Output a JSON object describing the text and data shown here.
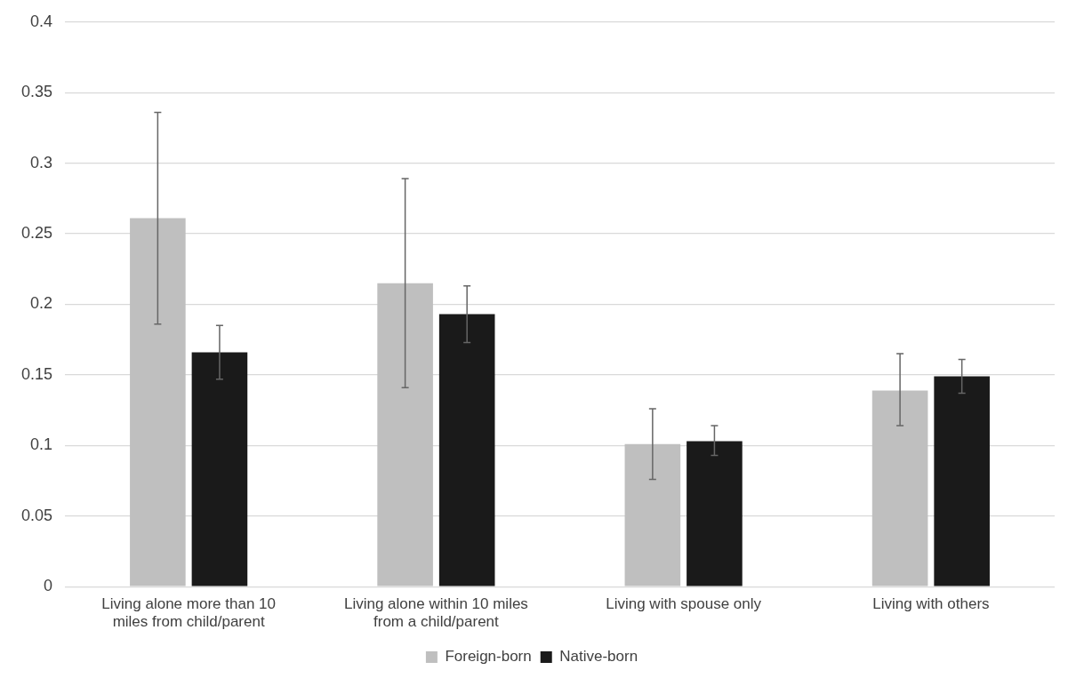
{
  "chart_data": {
    "type": "bar",
    "categories": [
      "Living alone more than 10 miles from child/parent",
      "Living alone within 10 miles from a child/parent",
      "Living with spouse only",
      "Living with others"
    ],
    "series": [
      {
        "name": "Foreign-born",
        "color": "#bfbfbf",
        "values": [
          0.261,
          0.215,
          0.101,
          0.139
        ],
        "errors": [
          [
            0.186,
            0.336
          ],
          [
            0.141,
            0.289
          ],
          [
            0.076,
            0.126
          ],
          [
            0.114,
            0.165
          ]
        ]
      },
      {
        "name": "Native-born",
        "color": "#1a1a1a",
        "values": [
          0.166,
          0.193,
          0.103,
          0.149
        ],
        "errors": [
          [
            0.147,
            0.185
          ],
          [
            0.173,
            0.213
          ],
          [
            0.093,
            0.114
          ],
          [
            0.137,
            0.161
          ]
        ]
      }
    ],
    "ylim": [
      0,
      0.4
    ],
    "yticks": [
      0,
      0.05,
      0.1,
      0.15,
      0.2,
      0.25,
      0.3,
      0.35,
      0.4
    ],
    "grid": "y",
    "legend": "bottom"
  }
}
